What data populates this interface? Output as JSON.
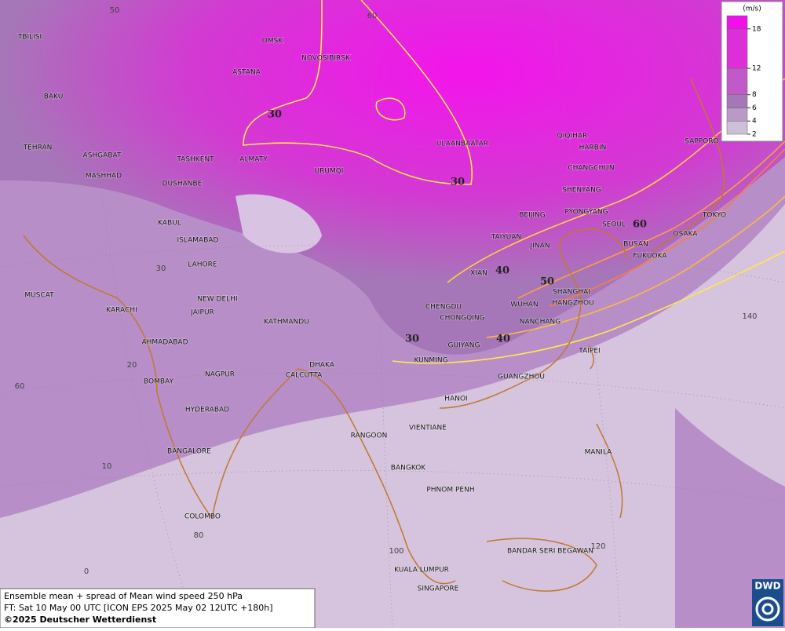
{
  "map": {
    "cities": [
      "TBILISI",
      "BAKU",
      "TEHRAN",
      "ASHGABAT",
      "MASHHAD",
      "TASHKENT",
      "ALMATY",
      "DUSHANBE",
      "KABUL",
      "ISLAMABAD",
      "LAHORE",
      "MUSCAT",
      "KARACHI",
      "NEW DELHI",
      "JAIPUR",
      "AHMADABAD",
      "NAGPUR",
      "BOMBAY",
      "HYDERABAD",
      "BANGALORE",
      "COLOMBO",
      "KATHMANDU",
      "DHAKA",
      "CALCUTTA",
      "OMSK",
      "NOVOSIBIRSK",
      "ASTANA",
      "URUMQI",
      "ULAANBAATAR",
      "QIQIHAR",
      "HARBIN",
      "CHANGCHUN",
      "SHENYANG",
      "BEIJING",
      "PYONGYANG",
      "SEOUL",
      "TAIYUAN",
      "JINAN",
      "BUSAN",
      "FUKUOKA",
      "XIAN",
      "SHANGHAI",
      "HANGZHOU",
      "WUHAN",
      "CHENGDU",
      "CHONGQING",
      "NANCHANG",
      "GUIYANG",
      "KUNMING",
      "TAIPEI",
      "GUANGZHOU",
      "HANOI",
      "VIENTIANE",
      "RANGOON",
      "BANGKOK",
      "PHNOM PENH",
      "MANILA",
      "BANDAR SERI BEGAWAN",
      "KUALA LUMPUR",
      "SINGAPORE",
      "TOKYO",
      "OSAKA",
      "SAPPORO"
    ],
    "contour_labels": [
      30,
      30,
      40,
      50,
      60,
      30,
      40
    ],
    "graticule_labels": [
      50,
      60,
      30,
      20,
      60,
      10,
      80,
      0,
      100,
      120,
      140
    ]
  },
  "legend": {
    "unit": "(m/s)",
    "lim": [
      2,
      20
    ],
    "ticks": [
      2,
      4,
      6,
      8,
      12,
      18
    ],
    "colors": [
      "#cdbfd6",
      "#b99ac6",
      "#a677b8",
      "#c259c8",
      "#dc2fd8",
      "#f010e8"
    ]
  },
  "footer": {
    "lines": [
      "Ensemble mean + spread of Mean wind speed 250 hPa",
      "FT: Sat 10 May 00 UTC [ICON EPS 2025 May 02 12UTC +180h]",
      "©2025 Deutscher Wetterdienst"
    ]
  },
  "logo": "DWD"
}
